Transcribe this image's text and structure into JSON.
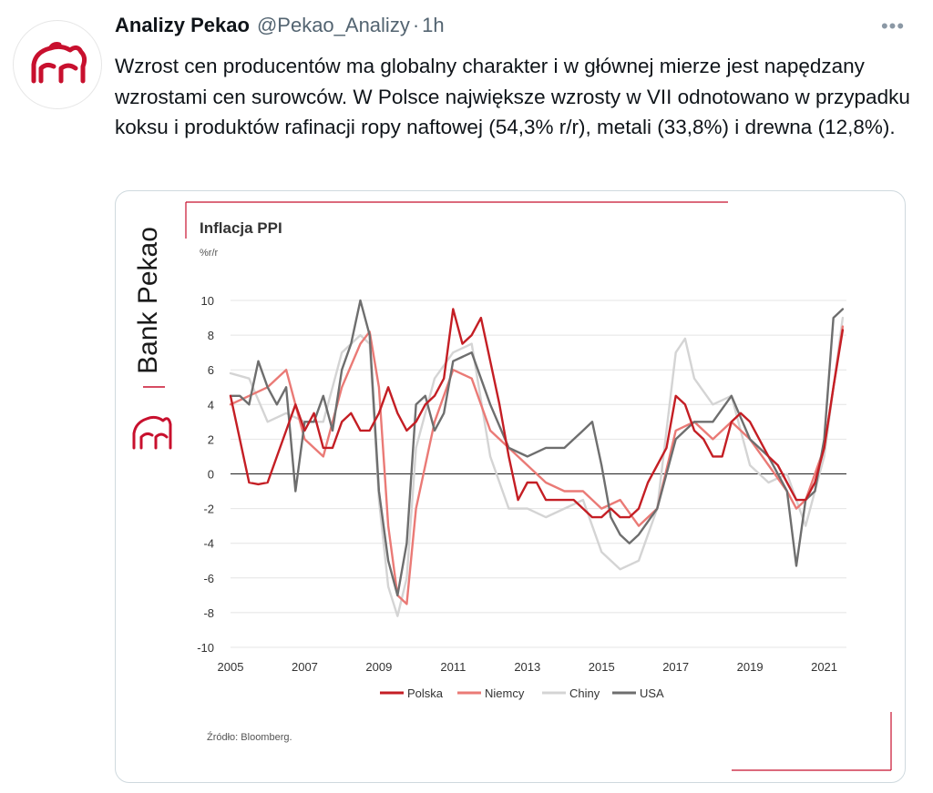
{
  "tweet": {
    "author": "Analizy Pekao",
    "handle": "@Pekao_Analizy",
    "separator": "·",
    "time": "1h",
    "more_icon": "more-icon",
    "text": "Wzrost cen producentów ma globalny charakter i w głównej mierze jest napędzany wzrostami cen surowców. W Polsce największe wzrosty w VII odnotowano w przypadku koksu i produktów rafinacji ropy naftowej (54,3% r/r), metali (33,8%) i drewna (12,8%).",
    "avatar_icon": "bison-logo-icon"
  },
  "colors": {
    "brand_red": "#c8102e",
    "polska": "#c41e24",
    "niemcy": "#ea7a76",
    "chiny": "#d4d4d4",
    "usa": "#6e6e6e"
  },
  "chart": {
    "brand": "Bank Pekao",
    "title": "Inflacja PPI",
    "unit": "%r/r",
    "source": "Źródło: Bloomberg."
  },
  "chart_data": {
    "type": "line",
    "title": "Inflacja PPI",
    "ylabel": "%r/r",
    "xlim": [
      2005,
      2021.6
    ],
    "ylim": [
      -10,
      10
    ],
    "x_ticks": [
      "2005",
      "2007",
      "2009",
      "2011",
      "2013",
      "2015",
      "2017",
      "2019",
      "2021"
    ],
    "y_ticks": [
      "10",
      "8",
      "6",
      "4",
      "2",
      "0",
      "-2",
      "-4",
      "-6",
      "-8",
      "-10"
    ],
    "grid": true,
    "legend": "bottom",
    "series": [
      {
        "name": "Polska",
        "x": [
          2005.0,
          2005.25,
          2005.5,
          2005.75,
          2006.0,
          2006.25,
          2006.5,
          2006.75,
          2007.0,
          2007.25,
          2007.5,
          2007.75,
          2008.0,
          2008.25,
          2008.5,
          2008.75,
          2009.0,
          2009.25,
          2009.5,
          2009.75,
          2010.0,
          2010.25,
          2010.5,
          2010.75,
          2011.0,
          2011.25,
          2011.5,
          2011.75,
          2012.0,
          2012.25,
          2012.5,
          2012.75,
          2013.0,
          2013.25,
          2013.5,
          2013.75,
          2014.0,
          2014.25,
          2014.5,
          2014.75,
          2015.0,
          2015.25,
          2015.5,
          2015.75,
          2016.0,
          2016.25,
          2016.5,
          2016.75,
          2017.0,
          2017.25,
          2017.5,
          2017.75,
          2018.0,
          2018.25,
          2018.5,
          2018.75,
          2019.0,
          2019.25,
          2019.5,
          2019.75,
          2020.0,
          2020.25,
          2020.5,
          2020.75,
          2021.0,
          2021.25,
          2021.5
        ],
        "values": [
          4.5,
          2.0,
          -0.5,
          -0.6,
          -0.5,
          1.0,
          2.5,
          4.0,
          2.5,
          3.5,
          1.5,
          1.5,
          3.0,
          3.5,
          2.5,
          2.5,
          3.5,
          5.0,
          3.5,
          2.5,
          3.0,
          4.0,
          4.5,
          5.5,
          9.5,
          7.5,
          8.0,
          9.0,
          6.5,
          4.0,
          1.0,
          -1.5,
          -0.5,
          -0.5,
          -1.5,
          -1.5,
          -1.5,
          -1.5,
          -2.0,
          -2.5,
          -2.5,
          -2.0,
          -2.5,
          -2.5,
          -2.0,
          -0.5,
          0.5,
          1.5,
          4.5,
          4.0,
          2.5,
          2.0,
          1.0,
          1.0,
          3.0,
          3.5,
          3.0,
          2.0,
          1.0,
          0.5,
          -0.5,
          -1.5,
          -1.5,
          -0.5,
          1.5,
          5.0,
          8.3
        ]
      },
      {
        "name": "Niemcy",
        "x": [
          2005.0,
          2005.5,
          2006.0,
          2006.5,
          2007.0,
          2007.5,
          2008.0,
          2008.5,
          2008.75,
          2009.0,
          2009.25,
          2009.5,
          2009.75,
          2010.0,
          2010.5,
          2011.0,
          2011.5,
          2012.0,
          2012.5,
          2013.0,
          2013.5,
          2014.0,
          2014.5,
          2015.0,
          2015.5,
          2016.0,
          2016.5,
          2017.0,
          2017.5,
          2018.0,
          2018.5,
          2019.0,
          2019.5,
          2020.0,
          2020.25,
          2020.5,
          2021.0,
          2021.25,
          2021.5
        ],
        "values": [
          4.0,
          4.5,
          5.0,
          6.0,
          2.0,
          1.0,
          5.0,
          7.5,
          8.2,
          5.0,
          -3.0,
          -7.0,
          -7.5,
          -2.0,
          3.0,
          6.0,
          5.5,
          2.5,
          1.5,
          0.5,
          -0.5,
          -1.0,
          -1.0,
          -2.0,
          -1.5,
          -3.0,
          -2.0,
          2.5,
          3.0,
          2.0,
          3.0,
          2.0,
          0.5,
          -1.0,
          -2.0,
          -1.5,
          1.5,
          5.0,
          8.5
        ]
      },
      {
        "name": "Chiny",
        "x": [
          2005.0,
          2005.5,
          2006.0,
          2006.5,
          2007.0,
          2007.5,
          2008.0,
          2008.5,
          2008.75,
          2009.0,
          2009.25,
          2009.5,
          2009.75,
          2010.0,
          2010.5,
          2011.0,
          2011.5,
          2012.0,
          2012.5,
          2013.0,
          2013.5,
          2014.0,
          2014.5,
          2015.0,
          2015.5,
          2016.0,
          2016.5,
          2017.0,
          2017.25,
          2017.5,
          2018.0,
          2018.5,
          2019.0,
          2019.5,
          2020.0,
          2020.5,
          2021.0,
          2021.5
        ],
        "values": [
          5.8,
          5.5,
          3.0,
          3.5,
          3.0,
          3.0,
          7.0,
          8.0,
          7.5,
          -1.5,
          -6.5,
          -8.2,
          -6.0,
          1.5,
          5.5,
          7.0,
          7.5,
          1.0,
          -2.0,
          -2.0,
          -2.5,
          -2.0,
          -1.5,
          -4.5,
          -5.5,
          -5.0,
          -2.0,
          7.0,
          7.8,
          5.5,
          4.0,
          4.5,
          0.5,
          -0.5,
          0.0,
          -3.0,
          1.0,
          9.0
        ]
      },
      {
        "name": "USA",
        "x": [
          2005.0,
          2005.25,
          2005.5,
          2005.75,
          2006.0,
          2006.25,
          2006.5,
          2006.75,
          2007.0,
          2007.25,
          2007.5,
          2007.75,
          2008.0,
          2008.25,
          2008.5,
          2008.75,
          2009.0,
          2009.25,
          2009.5,
          2009.75,
          2010.0,
          2010.25,
          2010.5,
          2010.75,
          2011.0,
          2011.5,
          2012.0,
          2012.5,
          2013.0,
          2013.5,
          2014.0,
          2014.5,
          2014.75,
          2015.0,
          2015.25,
          2015.5,
          2015.75,
          2016.0,
          2016.5,
          2017.0,
          2017.5,
          2018.0,
          2018.5,
          2019.0,
          2019.5,
          2020.0,
          2020.25,
          2020.5,
          2020.75,
          2021.0,
          2021.25,
          2021.5
        ],
        "values": [
          4.5,
          4.5,
          4.0,
          6.5,
          5.0,
          4.0,
          5.0,
          -1.0,
          3.0,
          3.0,
          4.5,
          2.5,
          6.0,
          7.5,
          10.0,
          8.0,
          -1.0,
          -5.0,
          -7.0,
          -4.0,
          4.0,
          4.5,
          2.5,
          3.5,
          6.5,
          7.0,
          4.0,
          1.5,
          1.0,
          1.5,
          1.5,
          2.5,
          3.0,
          0.5,
          -2.5,
          -3.5,
          -4.0,
          -3.5,
          -2.0,
          2.0,
          3.0,
          3.0,
          4.5,
          2.0,
          1.0,
          -1.0,
          -5.3,
          -1.5,
          -1.0,
          2.0,
          9.0,
          9.5
        ]
      }
    ]
  }
}
